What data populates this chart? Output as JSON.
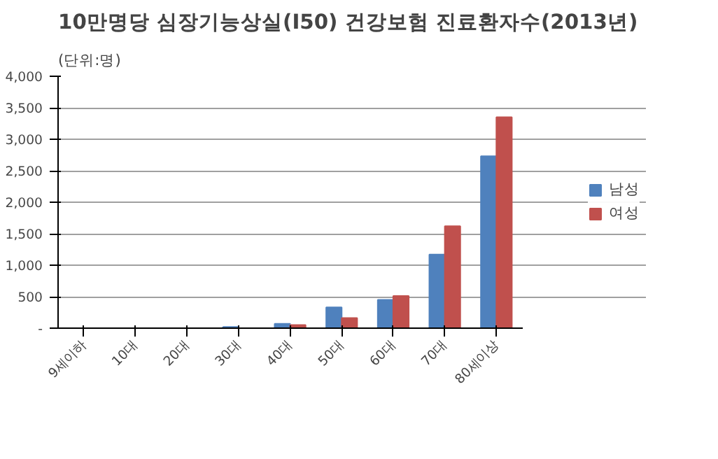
{
  "chart_data": {
    "type": "bar",
    "title": "10만명당 심장기능상실(I50) 건강보험 진료환자수(2013년)",
    "annotations": [
      "(단위:명)"
    ],
    "categories": [
      "9세이하",
      "10대",
      "20대",
      "30대",
      "40대",
      "50대",
      "60대",
      "70대",
      "80세이상"
    ],
    "series": [
      {
        "name": "남성",
        "color": "#4f81bd",
        "values": [
          0,
          0,
          0,
          20,
          70,
          330,
          450,
          1170,
          2730
        ]
      },
      {
        "name": "여성",
        "color": "#c0504d",
        "values": [
          0,
          0,
          0,
          null,
          50,
          160,
          510,
          1620,
          3350
        ]
      }
    ],
    "ylim": [
      0,
      4000
    ],
    "yticks": [
      {
        "value": 0,
        "label": "-"
      },
      500,
      {
        "value": 1000,
        "label": "1,000"
      },
      {
        "value": 1500,
        "label": "1,500"
      },
      {
        "value": 2000,
        "label": "2,000"
      },
      {
        "value": 2500,
        "label": "2,500"
      },
      {
        "value": 3000,
        "label": "3,000"
      },
      {
        "value": 3500,
        "label": "3,500"
      },
      {
        "value": 4000,
        "label": "4,000"
      }
    ],
    "grid": "y",
    "legend": "right"
  }
}
